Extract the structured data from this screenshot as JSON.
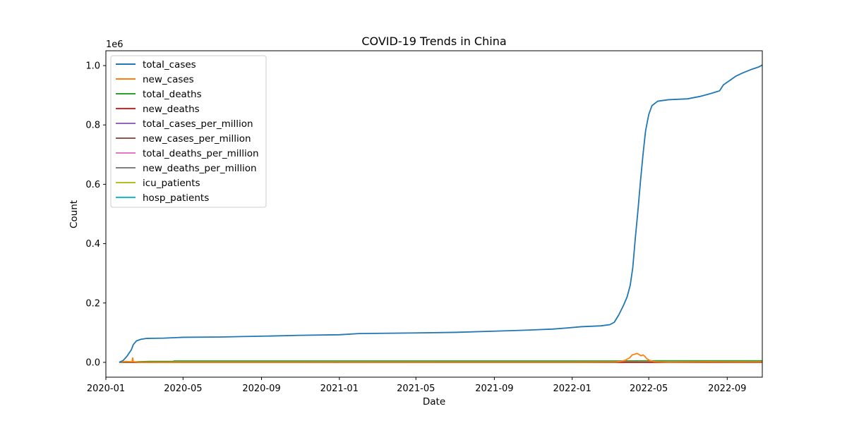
{
  "chart_data": {
    "type": "line",
    "title": "COVID-19 Trends in China",
    "xlabel": "Date",
    "ylabel": "Count",
    "y_offset_label": "1e6",
    "x_range": [
      "2020-01-01",
      "2022-10-26"
    ],
    "ylim": [
      -50000,
      1050000
    ],
    "x_ticks": [
      "2020-01",
      "2020-05",
      "2020-09",
      "2021-01",
      "2021-05",
      "2021-09",
      "2022-01",
      "2022-05",
      "2022-09"
    ],
    "y_ticks": [
      0.0,
      0.2,
      0.4,
      0.6,
      0.8,
      1.0
    ],
    "grid": false,
    "legend_position": "upper-left",
    "series": [
      {
        "name": "total_cases",
        "color": "#1f77b4",
        "points": [
          [
            "2020-01-22",
            548
          ],
          [
            "2020-01-28",
            5974
          ],
          [
            "2020-02-03",
            20438
          ],
          [
            "2020-02-10",
            42708
          ],
          [
            "2020-02-13",
            59804
          ],
          [
            "2020-02-18",
            72436
          ],
          [
            "2020-02-25",
            77779
          ],
          [
            "2020-03-05",
            80565
          ],
          [
            "2020-03-15",
            81000
          ],
          [
            "2020-04-01",
            81554
          ],
          [
            "2020-04-17",
            83000
          ],
          [
            "2020-05-01",
            84400
          ],
          [
            "2020-07-01",
            85500
          ],
          [
            "2020-08-01",
            87000
          ],
          [
            "2020-09-01",
            88000
          ],
          [
            "2020-11-01",
            91000
          ],
          [
            "2021-01-01",
            93000
          ],
          [
            "2021-02-01",
            97000
          ],
          [
            "2021-05-01",
            99000
          ],
          [
            "2021-07-01",
            101000
          ],
          [
            "2021-09-01",
            105000
          ],
          [
            "2021-10-15",
            108000
          ],
          [
            "2021-12-01",
            112000
          ],
          [
            "2021-12-25",
            116000
          ],
          [
            "2022-01-15",
            120000
          ],
          [
            "2022-02-15",
            123000
          ],
          [
            "2022-03-01",
            127000
          ],
          [
            "2022-03-08",
            135000
          ],
          [
            "2022-03-15",
            160000
          ],
          [
            "2022-03-22",
            190000
          ],
          [
            "2022-03-28",
            220000
          ],
          [
            "2022-04-02",
            260000
          ],
          [
            "2022-04-06",
            320000
          ],
          [
            "2022-04-10",
            420000
          ],
          [
            "2022-04-14",
            510000
          ],
          [
            "2022-04-18",
            610000
          ],
          [
            "2022-04-22",
            700000
          ],
          [
            "2022-04-26",
            780000
          ],
          [
            "2022-05-01",
            835000
          ],
          [
            "2022-05-06",
            865000
          ],
          [
            "2022-05-15",
            880000
          ],
          [
            "2022-06-01",
            885000
          ],
          [
            "2022-07-01",
            888000
          ],
          [
            "2022-07-20",
            896000
          ],
          [
            "2022-08-05",
            905000
          ],
          [
            "2022-08-20",
            915000
          ],
          [
            "2022-08-26",
            935000
          ],
          [
            "2022-09-05",
            950000
          ],
          [
            "2022-09-15",
            965000
          ],
          [
            "2022-09-25",
            975000
          ],
          [
            "2022-10-10",
            988000
          ],
          [
            "2022-10-20",
            995000
          ],
          [
            "2022-10-26",
            1002000
          ]
        ]
      },
      {
        "name": "new_cases",
        "color": "#ff7f0e",
        "points": [
          [
            "2020-01-22",
            0
          ],
          [
            "2020-02-01",
            3000
          ],
          [
            "2020-02-11",
            2000
          ],
          [
            "2020-02-12",
            15000
          ],
          [
            "2020-02-13",
            2000
          ],
          [
            "2020-02-20",
            400
          ],
          [
            "2020-03-01",
            200
          ],
          [
            "2020-04-01",
            50
          ],
          [
            "2021-01-01",
            100
          ],
          [
            "2022-01-01",
            200
          ],
          [
            "2022-03-10",
            1000
          ],
          [
            "2022-03-18",
            3000
          ],
          [
            "2022-03-25",
            7000
          ],
          [
            "2022-04-01",
            15000
          ],
          [
            "2022-04-05",
            25000
          ],
          [
            "2022-04-10",
            28000
          ],
          [
            "2022-04-13",
            30000
          ],
          [
            "2022-04-16",
            26000
          ],
          [
            "2022-04-19",
            22000
          ],
          [
            "2022-04-22",
            25000
          ],
          [
            "2022-04-25",
            20000
          ],
          [
            "2022-04-28",
            12000
          ],
          [
            "2022-05-03",
            6000
          ],
          [
            "2022-05-10",
            2000
          ],
          [
            "2022-06-01",
            300
          ],
          [
            "2022-08-01",
            1500
          ],
          [
            "2022-09-01",
            1200
          ],
          [
            "2022-10-26",
            1000
          ]
        ]
      },
      {
        "name": "total_deaths",
        "color": "#2ca02c",
        "points": [
          [
            "2020-01-22",
            17
          ],
          [
            "2020-02-15",
            1600
          ],
          [
            "2020-03-10",
            3100
          ],
          [
            "2020-04-16",
            3342
          ],
          [
            "2020-04-17",
            4632
          ],
          [
            "2021-12-31",
            4636
          ],
          [
            "2022-03-15",
            4638
          ],
          [
            "2022-05-01",
            5100
          ],
          [
            "2022-06-01",
            5226
          ],
          [
            "2022-10-26",
            5226
          ]
        ]
      },
      {
        "name": "new_deaths",
        "color": "#d62728",
        "points": [
          [
            "2020-01-22",
            0
          ],
          [
            "2022-10-26",
            0
          ]
        ]
      },
      {
        "name": "total_cases_per_million",
        "color": "#9467bd",
        "points": [
          [
            "2020-01-22",
            0
          ],
          [
            "2022-10-26",
            700
          ]
        ]
      },
      {
        "name": "new_cases_per_million",
        "color": "#8c564b",
        "points": [
          [
            "2020-01-22",
            0
          ],
          [
            "2022-10-26",
            0
          ]
        ]
      },
      {
        "name": "total_deaths_per_million",
        "color": "#e377c2",
        "points": [
          [
            "2020-01-22",
            0
          ],
          [
            "2022-10-26",
            4
          ]
        ]
      },
      {
        "name": "new_deaths_per_million",
        "color": "#7f7f7f",
        "points": [
          [
            "2020-01-22",
            0
          ],
          [
            "2022-10-26",
            0
          ]
        ]
      },
      {
        "name": "icu_patients",
        "color": "#bcbd22",
        "points": [
          [
            "2020-01-22",
            0
          ],
          [
            "2022-10-26",
            0
          ]
        ]
      },
      {
        "name": "hosp_patients",
        "color": "#17becf",
        "points": [
          [
            "2020-01-22",
            0
          ],
          [
            "2022-10-26",
            0
          ]
        ]
      }
    ]
  }
}
